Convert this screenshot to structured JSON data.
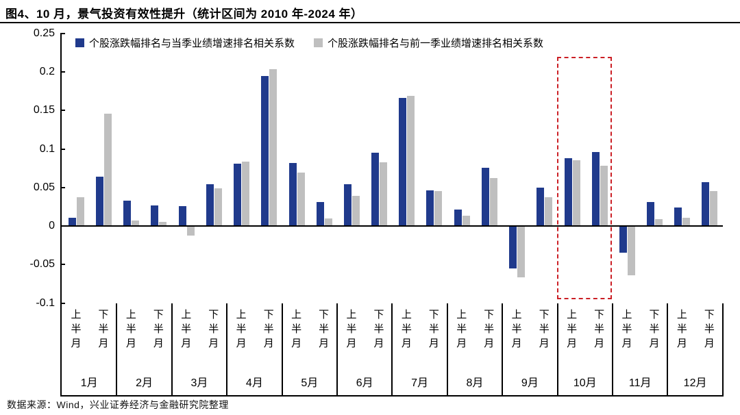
{
  "title": "图4、10 月，景气投资有效性提升（统计区间为 2010 年-2024 年）",
  "source_note": "数据来源：Wind，兴业证券经济与金融研究院整理",
  "legend": [
    {
      "label": "个股涨跌幅排名与当季业绩增速排名相关系数",
      "color": "#203a8c"
    },
    {
      "label": "个股涨跌幅排名与前一季业绩增速排名相关系数",
      "color": "#bfbfbf"
    }
  ],
  "colors": {
    "current_quarter_bar": "#203a8c",
    "previous_quarter_bar": "#bfbfbf",
    "highlight_box": "#cb1f25",
    "axis": "#000000"
  },
  "chart_data": {
    "type": "bar",
    "title": "图4、10 月，景气投资有效性提升（统计区间为 2010 年-2024 年）",
    "categories": [
      "1月",
      "2月",
      "3月",
      "4月",
      "5月",
      "6月",
      "7月",
      "8月",
      "9月",
      "10月",
      "11月",
      "12月"
    ],
    "half_month_labels": [
      "上半月",
      "下半月"
    ],
    "series": [
      {
        "name": "个股涨跌幅排名与当季业绩增速排名相关系数",
        "color": "#203a8c",
        "values": [
          0.011,
          0.064,
          0.033,
          0.027,
          0.026,
          0.054,
          0.081,
          0.195,
          0.082,
          0.031,
          0.054,
          0.095,
          0.166,
          0.046,
          0.021,
          0.076,
          -0.055,
          0.05,
          0.088,
          0.096,
          -0.035,
          0.031,
          0.024,
          0.057
        ]
      },
      {
        "name": "个股涨跌幅排名与前一季业绩增速排名相关系数",
        "color": "#bfbfbf",
        "values": [
          0.037,
          0.146,
          0.007,
          0.005,
          -0.012,
          0.049,
          0.084,
          0.204,
          0.069,
          0.01,
          0.039,
          0.083,
          0.169,
          0.045,
          0.013,
          0.062,
          -0.067,
          0.037,
          0.085,
          0.078,
          -0.064,
          0.009,
          0.011,
          0.045
        ]
      }
    ],
    "value_order_note": "values are flat per half-month: 1月上半月, 1月下半月, 2月上半月, ... 12月下半月",
    "ylim": [
      -0.1,
      0.25
    ],
    "yticks": [
      "0.25",
      "0.2",
      "0.15",
      "0.1",
      "0.05",
      "0",
      "-0.05",
      "-0.1"
    ],
    "grid": false,
    "legend_position": "top",
    "highlight": {
      "category": "10月",
      "style": "red dashed box"
    }
  }
}
